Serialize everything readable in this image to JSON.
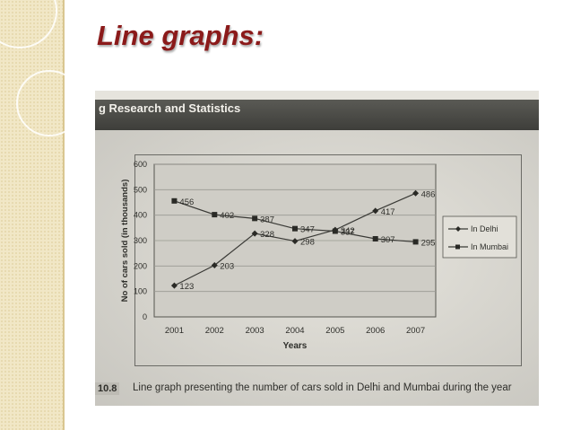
{
  "slide": {
    "title": "Line graphs:"
  },
  "book": {
    "header": "g Research and Statistics",
    "figure_number": "10.8",
    "caption": "Line graph presenting the number of cars sold in Delhi and Mumbai during the year"
  },
  "chart_data": {
    "type": "line",
    "categories": [
      "2001",
      "2002",
      "2003",
      "2004",
      "2005",
      "2006",
      "2007"
    ],
    "series": [
      {
        "name": "In Delhi",
        "marker": "diamond",
        "values": [
          123,
          203,
          328,
          298,
          342,
          417,
          486
        ],
        "labels": [
          "123",
          "203",
          "328",
          "298",
          "342",
          "417",
          "486"
        ]
      },
      {
        "name": "In Mumbai",
        "marker": "square",
        "values": [
          456,
          402,
          387,
          347,
          337,
          307,
          295
        ],
        "labels": [
          "456",
          "402",
          "387",
          "347",
          "337",
          "307",
          "295"
        ]
      }
    ],
    "xlabel": "Years",
    "ylabel": "No of cars sold (in thousands)",
    "ylim": [
      0,
      600
    ],
    "yticks": [
      0,
      100,
      200,
      300,
      400,
      500,
      600
    ],
    "grid": true,
    "legend": "right",
    "colors": {
      "line": "#3a3a36",
      "grid": "#9a9992",
      "plot_bg": "#cfcdc6"
    }
  }
}
